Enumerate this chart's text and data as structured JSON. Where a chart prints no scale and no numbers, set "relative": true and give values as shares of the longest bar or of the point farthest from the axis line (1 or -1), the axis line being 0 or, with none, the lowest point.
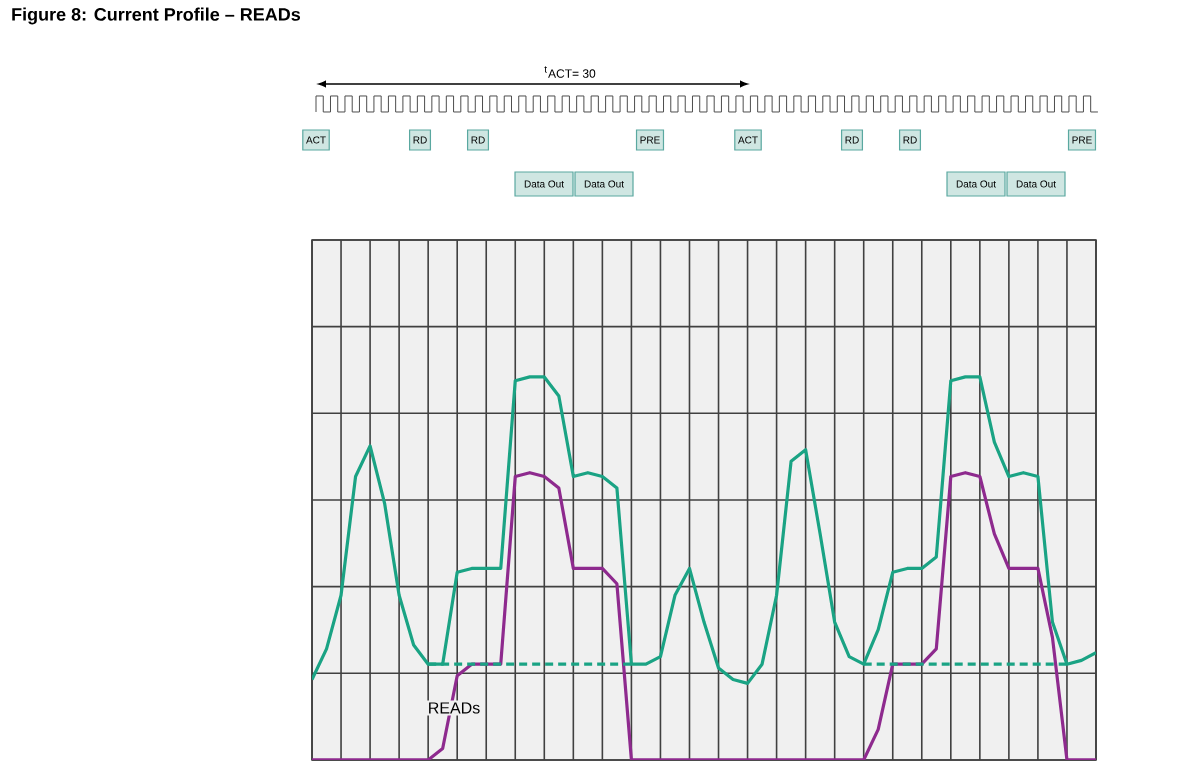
{
  "chart_data": {
    "type": "line",
    "title": "Figure 8: Current Profile – READs",
    "relative": true,
    "grid": true,
    "categories": [
      null,
      null,
      null,
      null,
      null,
      null,
      null,
      null,
      null,
      null,
      null,
      null,
      null,
      null,
      null,
      null,
      null,
      null,
      null,
      null,
      null,
      null,
      null,
      null,
      null,
      null,
      null,
      null,
      null,
      null,
      null,
      null,
      null,
      null,
      null,
      null,
      null,
      null,
      null,
      null,
      null,
      null,
      null,
      null,
      null,
      null,
      null,
      null,
      null,
      null,
      null,
      null,
      null,
      null,
      null
    ],
    "series": [
      {
        "color": "#1aa384",
        "line_style": "solid",
        "values": [
          0.21,
          0.29,
          0.43,
          0.74,
          0.82,
          0.67,
          0.43,
          0.3,
          0.25,
          0.25,
          0.49,
          0.5,
          0.5,
          0.5,
          0.99,
          1,
          1,
          0.95,
          0.74,
          0.75,
          0.74,
          0.71,
          0.25,
          0.25,
          0.27,
          0.43,
          0.5,
          0.36,
          0.24,
          0.21,
          0.2,
          0.25,
          0.43,
          0.78,
          0.81,
          0.59,
          0.36,
          0.27,
          0.25,
          0.34,
          0.49,
          0.5,
          0.5,
          0.53,
          0.99,
          1,
          1,
          0.83,
          0.74,
          0.75,
          0.74,
          0.36,
          0.25,
          0.26,
          0.28
        ]
      },
      {
        "color": "#8e2a8e",
        "line_style": "solid",
        "values": [
          0,
          0,
          0,
          0,
          0,
          0,
          0,
          0,
          0,
          0.03,
          0.22,
          0.25,
          0.25,
          0.25,
          0.74,
          0.75,
          0.74,
          0.71,
          0.5,
          0.5,
          0.5,
          0.46,
          0,
          0,
          0,
          0,
          0,
          0,
          0,
          0,
          0,
          0,
          0,
          0,
          0,
          0,
          0,
          0,
          0,
          0.08,
          0.25,
          0.25,
          0.25,
          0.29,
          0.74,
          0.75,
          0.74,
          0.59,
          0.5,
          0.5,
          0.5,
          0.32,
          0,
          0,
          0
        ]
      },
      {
        "color": "#1aa384",
        "line_style": "dashed",
        "values": [
          null,
          null,
          null,
          null,
          null,
          null,
          null,
          null,
          0.25,
          0.25,
          0.25,
          0.25,
          0.25,
          0.25,
          0.25,
          0.25,
          0.25,
          0.25,
          0.25,
          0.25,
          0.25,
          0.25,
          0.25,
          null,
          null,
          null,
          null,
          null,
          null,
          null,
          null,
          null,
          null,
          null,
          null,
          null,
          null,
          null,
          0.25,
          0.25,
          0.25,
          0.25,
          0.25,
          0.25,
          0.25,
          0.25,
          0.25,
          0.25,
          0.25,
          0.25,
          0.25,
          0.25,
          0.25,
          null,
          null
        ]
      }
    ],
    "annotations": [
      "$^{t}$ACT= 30",
      "ACT",
      "RD",
      "RD",
      "PRE",
      "ACT",
      "RD",
      "RD",
      "PRE",
      "Data Out",
      "Data Out",
      "Data Out",
      "Data Out",
      "READs"
    ]
  }
}
